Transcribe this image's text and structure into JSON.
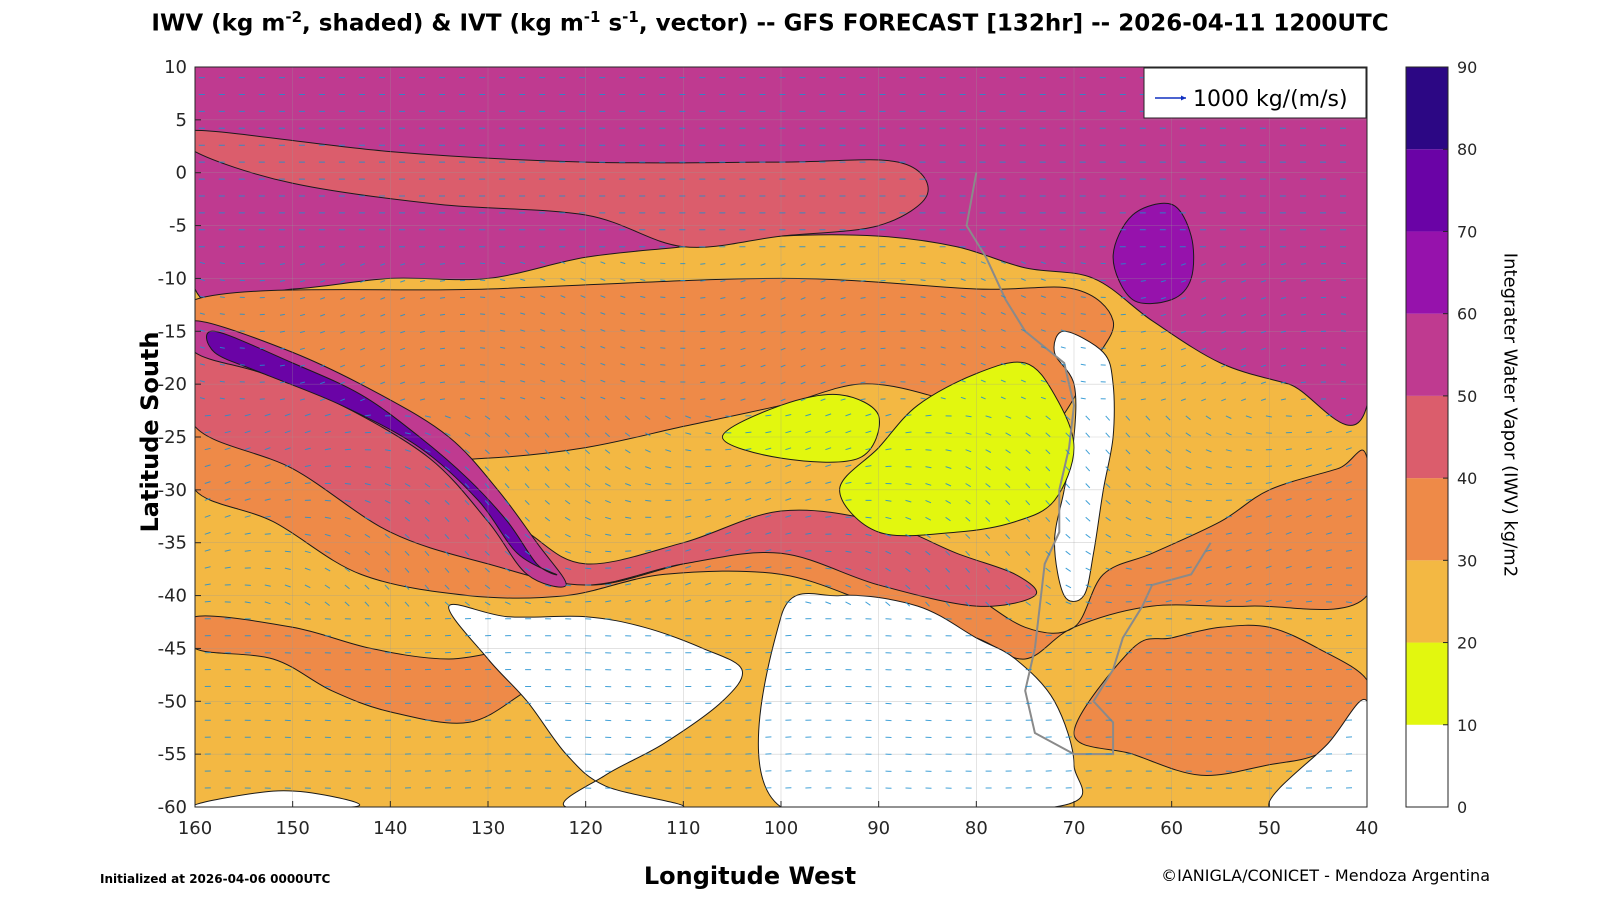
{
  "title": {
    "p1": "IWV (kg m",
    "p1_sup": "-2",
    "p2": ", shaded) & IVT (kg m",
    "p2_sup": "-1",
    "p3": " s",
    "p3_sup": "-1",
    "p4": ", vector) -- GFS FORECAST [132hr] -- 2026-04-11 1200UTC"
  },
  "footer": {
    "initialized": "Initialized at 2026-04-06 0000UTC",
    "credit": "©IANIGLA/CONICET - Mendoza Argentina"
  },
  "chart_data": {
    "type": "heatmap",
    "xlabel": "Longitude West",
    "ylabel": "Latitude South",
    "xlim": [
      160,
      40
    ],
    "ylim": [
      -60,
      10
    ],
    "x_ticks": [
      "160",
      "150",
      "140",
      "130",
      "120",
      "110",
      "100",
      "90",
      "80",
      "70",
      "60",
      "50",
      "40"
    ],
    "y_ticks": [
      "10",
      "5",
      "0",
      "-5",
      "-10",
      "-15",
      "-20",
      "-25",
      "-30",
      "-35",
      "-40",
      "-45",
      "-50",
      "-55",
      "-60"
    ],
    "grid": true,
    "legend": {
      "label": "1000 kg/(m/s)",
      "position": "top-right",
      "color": "#1030c0"
    },
    "colorbar": {
      "label": "Integrater Water Vapor (IWV) kg/m2",
      "ticks": [
        "0",
        "10",
        "20",
        "30",
        "40",
        "50",
        "60",
        "70",
        "80",
        "90"
      ],
      "levels": [
        {
          "from": 0,
          "to": 10,
          "color": "#ffffff"
        },
        {
          "from": 10,
          "to": 20,
          "color": "#e2f70f"
        },
        {
          "from": 20,
          "to": 30,
          "color": "#f3b843"
        },
        {
          "from": 30,
          "to": 40,
          "color": "#ee8a48"
        },
        {
          "from": 40,
          "to": 50,
          "color": "#db5d6c"
        },
        {
          "from": 50,
          "to": 60,
          "color": "#bf3a90"
        },
        {
          "from": 60,
          "to": 70,
          "color": "#9612ac"
        },
        {
          "from": 70,
          "to": 80,
          "color": "#6a03a6"
        },
        {
          "from": 80,
          "to": 90,
          "color": "#2c0784"
        }
      ]
    },
    "vector_color": "#1f8fd0",
    "features": [
      {
        "name": "tropical-band",
        "level": 5,
        "points": [
          [
            160,
            10
          ],
          [
            40,
            10
          ],
          [
            40,
            -22
          ],
          [
            48,
            -20
          ],
          [
            55,
            -18
          ],
          [
            62,
            -14
          ],
          [
            68,
            -10
          ],
          [
            75,
            -9
          ],
          [
            82,
            -7
          ],
          [
            90,
            -6
          ],
          [
            100,
            -6
          ],
          [
            110,
            -7
          ],
          [
            120,
            -8
          ],
          [
            130,
            -10
          ],
          [
            140,
            -10
          ],
          [
            150,
            -11
          ],
          [
            160,
            -11
          ]
        ]
      },
      {
        "name": "equatorial-weak-band",
        "level": 4,
        "points": [
          [
            160,
            2
          ],
          [
            150,
            -1
          ],
          [
            135,
            -3
          ],
          [
            120,
            -4
          ],
          [
            110,
            -7
          ],
          [
            100,
            -6
          ],
          [
            90,
            -5
          ],
          [
            85,
            -2
          ],
          [
            88,
            1
          ],
          [
            100,
            1
          ],
          [
            120,
            1
          ],
          [
            140,
            2
          ],
          [
            160,
            4
          ]
        ]
      },
      {
        "name": "mid-band-lower",
        "level": 3,
        "points": [
          [
            160,
            -20
          ],
          [
            150,
            -24
          ],
          [
            140,
            -27
          ],
          [
            130,
            -27
          ],
          [
            120,
            -26
          ],
          [
            110,
            -24
          ],
          [
            100,
            -22
          ],
          [
            92,
            -20
          ],
          [
            85,
            -21
          ],
          [
            80,
            -23
          ],
          [
            76,
            -26
          ],
          [
            72,
            -24
          ],
          [
            68,
            -18
          ],
          [
            66,
            -14
          ],
          [
            70,
            -11
          ],
          [
            80,
            -11
          ],
          [
            100,
            -10
          ],
          [
            130,
            -11
          ],
          [
            160,
            -12
          ]
        ]
      },
      {
        "name": "southern-band-lower",
        "level": 3,
        "points": [
          [
            160,
            -24
          ],
          [
            145,
            -27
          ],
          [
            135,
            -32
          ],
          [
            128,
            -36
          ],
          [
            120,
            -39
          ],
          [
            110,
            -37
          ],
          [
            100,
            -35
          ],
          [
            90,
            -36
          ],
          [
            82,
            -39
          ],
          [
            75,
            -43
          ],
          [
            70,
            -43
          ],
          [
            67,
            -38
          ],
          [
            62,
            -36
          ],
          [
            55,
            -33
          ],
          [
            50,
            -30
          ],
          [
            43,
            -28
          ],
          [
            40,
            -27
          ],
          [
            40,
            -40
          ],
          [
            52,
            -41
          ],
          [
            62,
            -41
          ],
          [
            70,
            -43
          ],
          [
            75,
            -46
          ],
          [
            80,
            -44
          ],
          [
            90,
            -41
          ],
          [
            100,
            -38
          ],
          [
            112,
            -38
          ],
          [
            122,
            -40
          ],
          [
            132,
            -40
          ],
          [
            143,
            -38
          ],
          [
            152,
            -33
          ],
          [
            160,
            -30
          ]
        ]
      },
      {
        "name": "southern-band-upper",
        "level": 4,
        "points": [
          [
            160,
            -17
          ],
          [
            150,
            -20
          ],
          [
            140,
            -24
          ],
          [
            132,
            -30
          ],
          [
            126,
            -34
          ],
          [
            120,
            -37
          ],
          [
            110,
            -35
          ],
          [
            100,
            -32
          ],
          [
            90,
            -33
          ],
          [
            82,
            -36
          ],
          [
            76,
            -38
          ],
          [
            74,
            -40
          ],
          [
            80,
            -41
          ],
          [
            90,
            -39
          ],
          [
            100,
            -36
          ],
          [
            110,
            -37
          ],
          [
            120,
            -39
          ],
          [
            130,
            -37
          ],
          [
            140,
            -34
          ],
          [
            150,
            -28
          ],
          [
            160,
            -24
          ]
        ]
      },
      {
        "name": "atmospheric-river",
        "level": 5,
        "points": [
          [
            160,
            -14
          ],
          [
            150,
            -17
          ],
          [
            141,
            -21
          ],
          [
            134,
            -25
          ],
          [
            129,
            -30
          ],
          [
            125,
            -35
          ],
          [
            122,
            -39
          ],
          [
            126,
            -38
          ],
          [
            130,
            -33
          ],
          [
            136,
            -27
          ],
          [
            145,
            -22
          ],
          [
            153,
            -19
          ],
          [
            160,
            -17
          ]
        ]
      },
      {
        "name": "atmospheric-river-core",
        "level": 7,
        "points": [
          [
            158,
            -15
          ],
          [
            150,
            -18
          ],
          [
            143,
            -21
          ],
          [
            137,
            -25
          ],
          [
            132,
            -29
          ],
          [
            128,
            -33
          ],
          [
            125,
            -37
          ],
          [
            123,
            -38
          ],
          [
            127,
            -36
          ],
          [
            131,
            -31
          ],
          [
            137,
            -26
          ],
          [
            145,
            -22
          ],
          [
            153,
            -19
          ],
          [
            158,
            -17
          ]
        ]
      },
      {
        "name": "south-pacific-patch",
        "level": 3,
        "points": [
          [
            160,
            -45
          ],
          [
            152,
            -46
          ],
          [
            146,
            -49
          ],
          [
            140,
            -51
          ],
          [
            132,
            -52
          ],
          [
            126,
            -49
          ],
          [
            122,
            -47
          ],
          [
            126,
            -45
          ],
          [
            134,
            -46
          ],
          [
            142,
            -45
          ],
          [
            150,
            -43
          ],
          [
            160,
            -42
          ]
        ]
      },
      {
        "name": "south-atlantic-patch",
        "level": 3,
        "points": [
          [
            70,
            -53
          ],
          [
            64,
            -45
          ],
          [
            60,
            -44
          ],
          [
            55,
            -43
          ],
          [
            50,
            -43
          ],
          [
            45,
            -45
          ],
          [
            40,
            -48
          ],
          [
            40,
            -52
          ],
          [
            45,
            -55
          ],
          [
            50,
            -56
          ],
          [
            57,
            -57
          ],
          [
            64,
            -55
          ]
        ]
      },
      {
        "name": "south-dry-zone",
        "level": 0,
        "points": [
          [
            122,
            -60
          ],
          [
            118,
            -57
          ],
          [
            112,
            -54
          ],
          [
            106,
            -50
          ],
          [
            104,
            -47
          ],
          [
            108,
            -45
          ],
          [
            114,
            -43
          ],
          [
            120,
            -42
          ],
          [
            128,
            -42
          ],
          [
            134,
            -41
          ],
          [
            130,
            -46
          ],
          [
            126,
            -50
          ],
          [
            122,
            -55
          ],
          [
            118,
            -58
          ],
          [
            110,
            -60
          ]
        ]
      },
      {
        "name": "south-dry-zone-east",
        "level": 0,
        "points": [
          [
            100,
            -60
          ],
          [
            100,
            -42
          ],
          [
            94,
            -40
          ],
          [
            86,
            -41
          ],
          [
            80,
            -44
          ],
          [
            76,
            -46
          ],
          [
            72,
            -50
          ],
          [
            70,
            -56
          ],
          [
            72,
            -60
          ]
        ]
      },
      {
        "name": "southwest-dry-strip",
        "level": 0,
        "points": [
          [
            160,
            -60
          ],
          [
            152,
            -58.5
          ],
          [
            146,
            -59
          ],
          [
            144,
            -60
          ]
        ]
      },
      {
        "name": "southeast-dry-zone",
        "level": 0,
        "points": [
          [
            50,
            -60
          ],
          [
            44,
            -54
          ],
          [
            40,
            -50
          ],
          [
            40,
            -60
          ]
        ]
      },
      {
        "name": "andes-dry",
        "level": 0,
        "points": [
          [
            71,
            -15
          ],
          [
            67,
            -17
          ],
          [
            66,
            -20
          ],
          [
            66,
            -25
          ],
          [
            67,
            -30
          ],
          [
            68,
            -36
          ],
          [
            69,
            -40
          ],
          [
            71,
            -40
          ],
          [
            72,
            -35
          ],
          [
            71,
            -30
          ],
          [
            70,
            -25
          ],
          [
            70,
            -20
          ],
          [
            72,
            -17
          ]
        ]
      },
      {
        "name": "subtropical-dry-east",
        "level": 1,
        "points": [
          [
            90,
            -26
          ],
          [
            86,
            -22
          ],
          [
            80,
            -19
          ],
          [
            75,
            -18
          ],
          [
            72,
            -21
          ],
          [
            70,
            -26
          ],
          [
            72,
            -31
          ],
          [
            76,
            -33
          ],
          [
            82,
            -34
          ],
          [
            90,
            -34
          ],
          [
            94,
            -30
          ]
        ]
      },
      {
        "name": "amazon-core",
        "level": 6,
        "points": [
          [
            64,
            -4
          ],
          [
            60,
            -3
          ],
          [
            58,
            -6
          ],
          [
            58,
            -10
          ],
          [
            60,
            -12
          ],
          [
            64,
            -12
          ],
          [
            66,
            -8
          ]
        ]
      },
      {
        "name": "pacific-dry-east",
        "level": 1,
        "points": [
          [
            106,
            -25
          ],
          [
            100,
            -22
          ],
          [
            94,
            -21
          ],
          [
            90,
            -23
          ],
          [
            92,
            -27
          ],
          [
            100,
            -27
          ]
        ]
      }
    ]
  }
}
